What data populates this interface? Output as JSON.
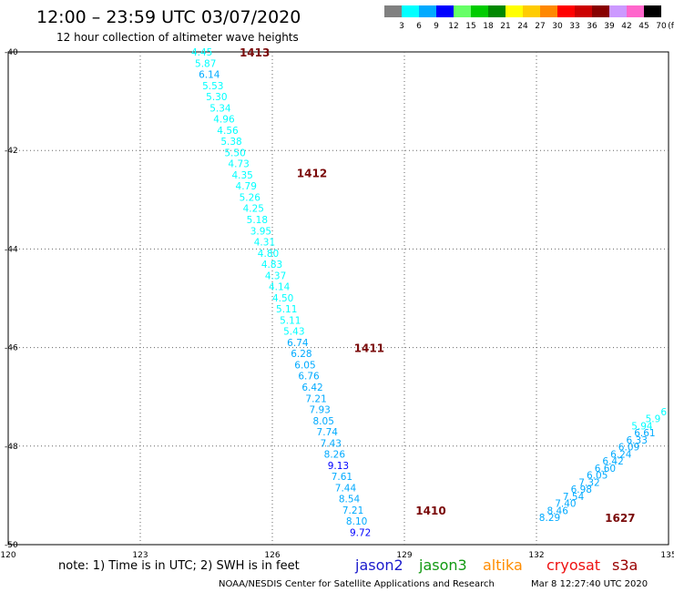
{
  "header": {
    "title": "12:00 – 23:59 UTC 03/07/2020",
    "subtitle": "12 hour collection of altimeter wave heights"
  },
  "legend": {
    "unit": "(ft)",
    "bins": [
      {
        "label": "3",
        "color": "#808080"
      },
      {
        "label": "6",
        "color": "#00ffff"
      },
      {
        "label": "9",
        "color": "#00aaff"
      },
      {
        "label": "12",
        "color": "#0000ff"
      },
      {
        "label": "15",
        "color": "#66ff66"
      },
      {
        "label": "18",
        "color": "#00cc00"
      },
      {
        "label": "21",
        "color": "#008800"
      },
      {
        "label": "24",
        "color": "#ffff00"
      },
      {
        "label": "27",
        "color": "#ffcc00"
      },
      {
        "label": "30",
        "color": "#ff8800"
      },
      {
        "label": "33",
        "color": "#ff0000"
      },
      {
        "label": "36",
        "color": "#cc0000"
      },
      {
        "label": "39",
        "color": "#880000"
      },
      {
        "label": "42",
        "color": "#cc99ff"
      },
      {
        "label": "45",
        "color": "#ff66cc"
      },
      {
        "label": "70",
        "color": "#000000"
      }
    ]
  },
  "chart_data": {
    "type": "scatter",
    "title": "12:00 – 23:59 UTC 03/07/2020",
    "subtitle": "12 hour collection of altimeter wave heights",
    "xlim": [
      120,
      135
    ],
    "ylim": [
      -50,
      -40
    ],
    "x_ticks": [
      "120",
      "123",
      "126",
      "129",
      "132",
      "135"
    ],
    "y_ticks": [
      "-40",
      "-42",
      "-44",
      "-46",
      "-48",
      "-50"
    ],
    "grid": true,
    "track1": {
      "lat_start": -40.0,
      "lat_end": -49.75,
      "lon_start": 124.4,
      "lon_end": 128.0,
      "values": [
        "4.45",
        "5.87",
        "6.14",
        "5.53",
        "5.30",
        "5.34",
        "4.96",
        "4.56",
        "5.38",
        "5.50",
        "4.73",
        "4.35",
        "4.79",
        "5.26",
        "4.25",
        "5.18",
        "3.95",
        "4.31",
        "4.80",
        "4.83",
        "4.37",
        "4.14",
        "4.50",
        "5.11",
        "5.11",
        "5.43",
        "6.74",
        "6.28",
        "6.05",
        "6.76",
        "6.42",
        "7.21",
        "7.93",
        "8.05",
        "7.74",
        "7.43",
        "8.26",
        "9.13",
        "7.61",
        "7.44",
        "8.54",
        "7.21",
        "8.10",
        "9.72"
      ]
    },
    "track2": {
      "lat_start": -49.45,
      "lat_end": -47.3,
      "lon_start": 132.3,
      "lon_end": 135.0,
      "values": [
        "8.29",
        "8.46",
        "7.40",
        "7.54",
        "6.98",
        "7.32",
        "6.05",
        "6.60",
        "6.42",
        "6.24",
        "6.09",
        "6.33",
        "6.61",
        "5.94",
        "5.9",
        "6"
      ]
    },
    "pass_labels": [
      {
        "text": "1413",
        "lon": 125.6,
        "lat": -40.0
      },
      {
        "text": "1412",
        "lon": 126.9,
        "lat": -42.45
      },
      {
        "text": "1411",
        "lon": 128.2,
        "lat": -46.0
      },
      {
        "text": "1410",
        "lon": 129.6,
        "lat": -49.3
      },
      {
        "text": "1627",
        "lon": 133.9,
        "lat": -49.45
      }
    ]
  },
  "note_text": "note:  1) Time is in UTC; 2) SWH is in feet",
  "missions": [
    {
      "name": "jason2",
      "color": "#1a1acc"
    },
    {
      "name": "jason3",
      "color": "#119911"
    },
    {
      "name": "altika",
      "color": "#ff8c00"
    },
    {
      "name": "cryosat",
      "color": "#ee1111"
    },
    {
      "name": "s3a",
      "color": "#990000"
    }
  ],
  "footer": {
    "source": "NOAA/NESDIS Center for Satellite Applications and Research",
    "timestamp": "Mar  8 12:27:40 UTC 2020"
  }
}
